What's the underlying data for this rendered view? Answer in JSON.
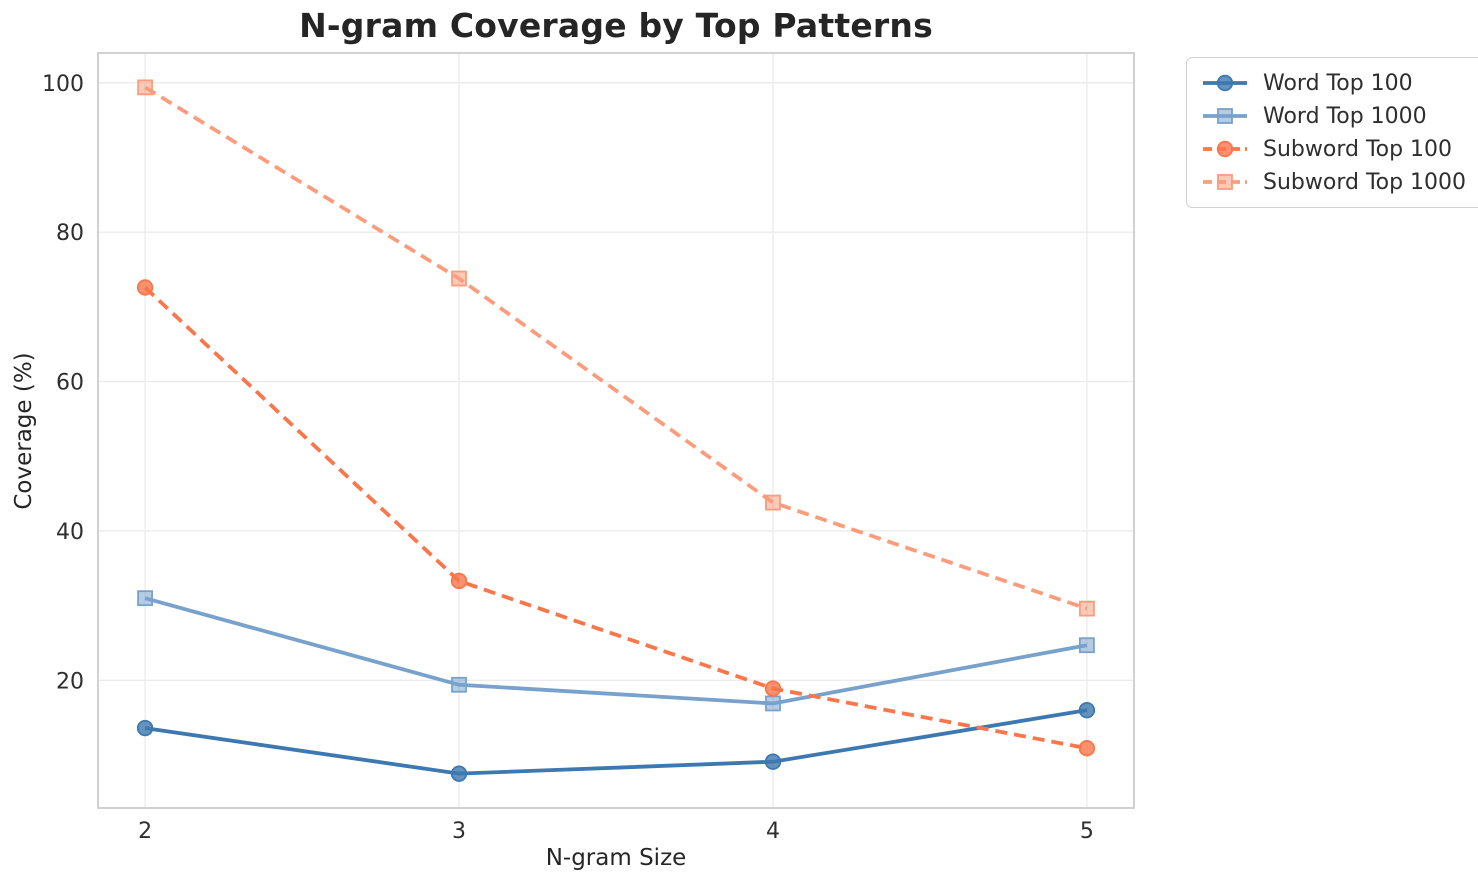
{
  "page": {
    "background": "#ffffff"
  },
  "chart_data": {
    "type": "line",
    "title": "N-gram Coverage by Top Patterns",
    "xlabel": "N-gram Size",
    "ylabel": "Coverage (%)",
    "x": [
      2,
      3,
      4,
      5
    ],
    "xticks": [
      2,
      3,
      4,
      5
    ],
    "yticks": [
      20,
      40,
      60,
      80,
      100
    ],
    "xlim": [
      1.85,
      5.15
    ],
    "ylim": [
      2.9,
      104.0
    ],
    "grid": true,
    "legend_position": "outside-top-right",
    "series": [
      {
        "name": "Word Top 100",
        "values": [
          13.6,
          7.5,
          9.1,
          16.0
        ],
        "color": "#3d78b0",
        "style": "solid",
        "marker": "circle"
      },
      {
        "name": "Word Top 1000",
        "values": [
          31.0,
          19.4,
          16.9,
          24.7
        ],
        "color": "#78a2cb",
        "style": "solid",
        "marker": "square"
      },
      {
        "name": "Subword Top 100",
        "values": [
          72.6,
          33.3,
          18.9,
          10.9
        ],
        "color": "#fa764b",
        "style": "dashed",
        "marker": "circle"
      },
      {
        "name": "Subword Top 1000",
        "values": [
          99.4,
          73.8,
          43.8,
          29.6
        ],
        "color": "#fb9d7d",
        "style": "dashed",
        "marker": "square"
      }
    ],
    "colors": {
      "grid": "#ececec",
      "spine": "#cccccc",
      "text": "#262626"
    }
  }
}
